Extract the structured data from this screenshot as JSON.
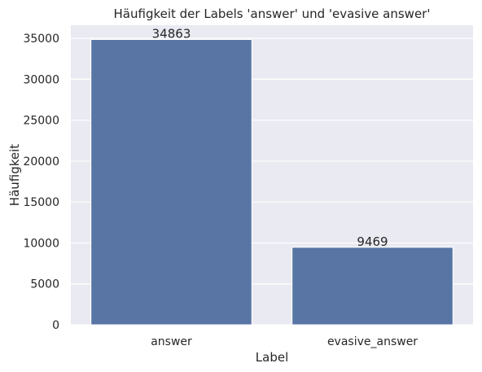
{
  "chart_data": {
    "type": "bar",
    "title": "Häufigkeit der Labels 'answer' und 'evasive answer'",
    "xlabel": "Label",
    "ylabel": "Häufigkeit",
    "categories": [
      "answer",
      "evasive_answer"
    ],
    "values": [
      34863,
      9469
    ],
    "data_labels": [
      "34863",
      "9469"
    ],
    "yticks": [
      0,
      5000,
      10000,
      15000,
      20000,
      25000,
      30000,
      35000
    ],
    "ytick_labels": [
      "0",
      "5000",
      "10000",
      "15000",
      "20000",
      "25000",
      "30000",
      "35000"
    ],
    "ylim": [
      0,
      36606
    ],
    "grid": true,
    "colors": {
      "bar": "#5875a4",
      "plot_background": "#eaeaf2",
      "grid": "#ffffff"
    }
  }
}
